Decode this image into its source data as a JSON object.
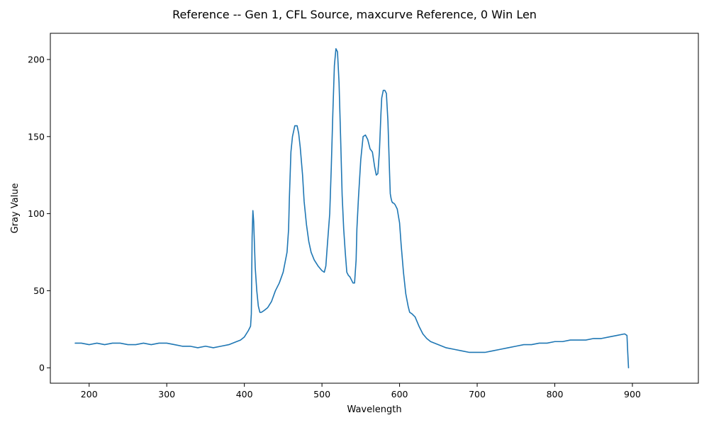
{
  "chart_data": {
    "type": "line",
    "title": "Reference -- Gen 1, CFL Source, maxcurve Reference, 0 Win Len",
    "xlabel": "Wavelength",
    "ylabel": "Gray Value",
    "xlim": [
      150,
      985
    ],
    "ylim": [
      -10,
      217
    ],
    "xticks": [
      200,
      300,
      400,
      500,
      600,
      700,
      800,
      900
    ],
    "yticks": [
      0,
      50,
      100,
      150,
      200
    ],
    "grid": false,
    "series": [
      {
        "color": "#1f77b4",
        "x": [
          182,
          190,
          200,
          210,
          220,
          230,
          240,
          250,
          260,
          270,
          280,
          290,
          300,
          310,
          320,
          330,
          340,
          350,
          360,
          370,
          380,
          390,
          395,
          400,
          405,
          408,
          409,
          410,
          411,
          412,
          413,
          414,
          416,
          418,
          420,
          422,
          425,
          430,
          435,
          440,
          445,
          450,
          455,
          457,
          458,
          460,
          462,
          465,
          468,
          470,
          472,
          475,
          477,
          480,
          483,
          486,
          490,
          495,
          500,
          503,
          505,
          507,
          510,
          512,
          514,
          516,
          518,
          520,
          522,
          524,
          526,
          528,
          530,
          532,
          534,
          536,
          538,
          540,
          542,
          544,
          545,
          547,
          550,
          553,
          556,
          559,
          562,
          565,
          568,
          570,
          572,
          574,
          576,
          577,
          579,
          581,
          583,
          585,
          587,
          588,
          589,
          590,
          591,
          592,
          594,
          597,
          600,
          602,
          605,
          608,
          611,
          613,
          616,
          620,
          625,
          630,
          635,
          640,
          650,
          660,
          670,
          680,
          690,
          700,
          710,
          720,
          730,
          740,
          750,
          760,
          770,
          780,
          790,
          800,
          810,
          820,
          830,
          840,
          850,
          860,
          870,
          880,
          890,
          893,
          894,
          895
        ],
        "values": [
          16,
          16,
          15,
          16,
          15,
          16,
          16,
          15,
          15,
          16,
          15,
          16,
          16,
          15,
          14,
          14,
          13,
          14,
          13,
          14,
          15,
          17,
          18,
          20,
          24,
          27,
          35,
          85,
          102,
          95,
          80,
          65,
          50,
          40,
          36,
          36,
          37,
          39,
          43,
          50,
          55,
          62,
          75,
          90,
          110,
          140,
          150,
          157,
          157,
          152,
          143,
          125,
          108,
          93,
          82,
          75,
          70,
          66,
          63,
          62,
          66,
          80,
          100,
          130,
          165,
          196,
          207,
          205,
          185,
          150,
          112,
          90,
          75,
          62,
          60,
          59,
          57,
          55,
          55,
          70,
          90,
          110,
          135,
          150,
          151,
          148,
          142,
          140,
          130,
          125,
          126,
          140,
          165,
          175,
          180,
          180,
          178,
          160,
          128,
          113,
          110,
          108,
          107,
          107,
          106,
          103,
          94,
          80,
          62,
          48,
          40,
          36,
          35,
          33,
          27,
          22,
          19,
          17,
          15,
          13,
          12,
          11,
          10,
          10,
          10,
          11,
          12,
          13,
          14,
          15,
          15,
          16,
          16,
          17,
          17,
          18,
          18,
          18,
          19,
          19,
          20,
          21,
          22,
          21,
          10,
          0
        ]
      }
    ]
  }
}
